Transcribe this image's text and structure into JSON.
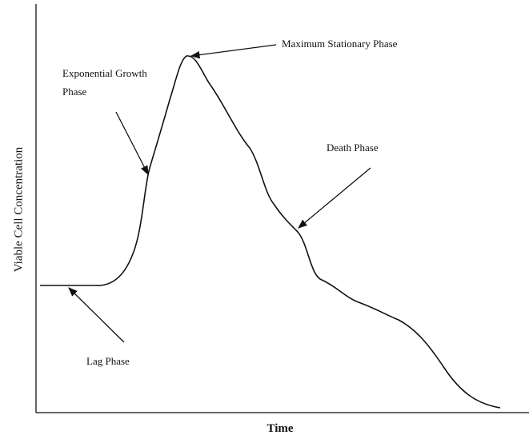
{
  "diagram": {
    "y_axis_label": "Viable Cell Concentration",
    "x_axis_label": "Time",
    "annotations": [
      {
        "label": "Maximum Stationary Phase"
      },
      {
        "label": [
          "Exponential Growth",
          "Phase"
        ]
      },
      {
        "label": "Death Phase"
      },
      {
        "label": "Lag Phase"
      }
    ]
  }
}
